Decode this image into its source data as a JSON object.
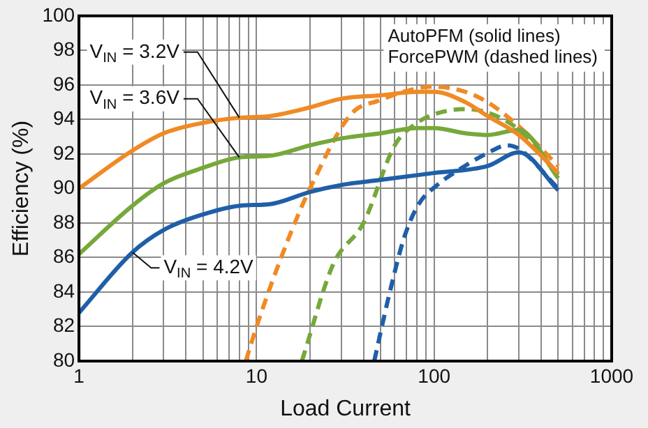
{
  "chart_data": {
    "type": "line",
    "xlabel": "Load Current",
    "ylabel": "Efficiency (%)",
    "log": "x",
    "grid": true,
    "legend": false,
    "marker": "none",
    "xlim": [
      1,
      1000
    ],
    "xticks": [
      1,
      {
        "value": 2,
        "label": null
      },
      {
        "value": 3,
        "label": null
      },
      {
        "value": 4,
        "label": null
      },
      {
        "value": 5,
        "label": null
      },
      {
        "value": 6,
        "label": null
      },
      {
        "value": 7,
        "label": null
      },
      {
        "value": 8,
        "label": null
      },
      {
        "value": 9,
        "label": null
      },
      10,
      {
        "value": 20,
        "label": null
      },
      {
        "value": 30,
        "label": null
      },
      {
        "value": 40,
        "label": null
      },
      {
        "value": 50,
        "label": null
      },
      {
        "value": 60,
        "label": null
      },
      {
        "value": 70,
        "label": null
      },
      {
        "value": 80,
        "label": null
      },
      {
        "value": 90,
        "label": null
      },
      100,
      {
        "value": 200,
        "label": null
      },
      {
        "value": 300,
        "label": null
      },
      {
        "value": 400,
        "label": null
      },
      {
        "value": 500,
        "label": null
      },
      {
        "value": 600,
        "label": null
      },
      {
        "value": 700,
        "label": null
      },
      {
        "value": 800,
        "label": null
      },
      {
        "value": 900,
        "label": null
      },
      1000
    ],
    "ylim": [
      80,
      100
    ],
    "yticks": [
      80,
      82,
      84,
      86,
      88,
      90,
      92,
      94,
      96,
      98,
      100
    ],
    "annotations": [
      "AutoPFM (solid lines)",
      "ForcePWM (dashed lines)"
    ],
    "series": [
      {
        "name": "V$_{IN}$ = 3.2V",
        "color": "#f08a24",
        "line_style": "solid",
        "x": [
          1,
          2,
          3,
          5,
          8,
          12,
          20,
          30,
          50,
          80,
          100,
          150,
          200,
          300,
          500
        ],
        "values": [
          90,
          92.2,
          93.2,
          93.8,
          94.1,
          94.2,
          94.7,
          95.2,
          95.4,
          95.6,
          95.6,
          95.0,
          94.2,
          93.1,
          90.9
        ]
      },
      {
        "name": "V$_{IN}$ = 3.6V",
        "color": "#76a83a",
        "line_style": "solid",
        "x": [
          1,
          2,
          3,
          5,
          8,
          12,
          20,
          30,
          50,
          80,
          100,
          150,
          200,
          300,
          500
        ],
        "values": [
          86.2,
          89.0,
          90.3,
          91.2,
          91.8,
          91.9,
          92.5,
          92.9,
          93.2,
          93.5,
          93.5,
          93.2,
          93.1,
          93.4,
          90.6
        ]
      },
      {
        "name": "V$_{IN}$ = 4.2V",
        "color": "#1f5fa8",
        "line_style": "solid",
        "x": [
          1,
          2,
          3,
          5,
          8,
          12,
          20,
          30,
          50,
          100,
          200,
          300,
          500
        ],
        "values": [
          82.8,
          86.3,
          87.6,
          88.5,
          89.0,
          89.1,
          89.8,
          90.2,
          90.5,
          90.9,
          91.3,
          92.1,
          89.9
        ]
      },
      {
        "color": "#f08a24",
        "line_style": "dashed",
        "x": [
          8.7,
          10,
          15,
          20,
          34,
          49,
          80,
          100,
          150,
          200,
          300,
          500
        ],
        "values": [
          80,
          82,
          87,
          90,
          94.3,
          95.1,
          95.8,
          95.9,
          95.6,
          95.0,
          93.6,
          91.3
        ]
      },
      {
        "color": "#76a83a",
        "line_style": "dashed",
        "x": [
          18,
          27,
          40,
          60,
          80,
          100,
          150,
          200,
          300,
          500
        ],
        "values": [
          80,
          85.6,
          88,
          92.5,
          93.8,
          94.3,
          94.6,
          94.4,
          93.4,
          90.8
        ]
      },
      {
        "color": "#1f5fa8",
        "line_style": "dashed",
        "x": [
          46,
          56,
          68,
          82,
          104,
          134,
          204,
          256,
          300,
          500
        ],
        "values": [
          80,
          83.9,
          87.2,
          89.1,
          90.2,
          91.0,
          92.1,
          92.5,
          92.3,
          90.0
        ]
      }
    ]
  }
}
